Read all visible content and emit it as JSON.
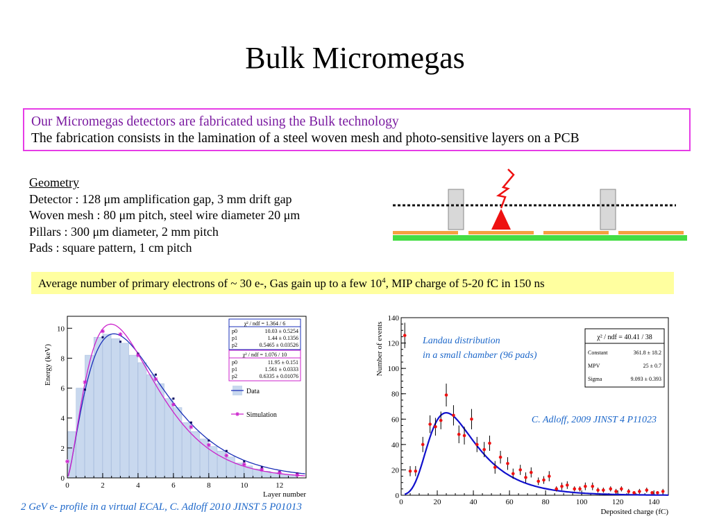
{
  "slide": {
    "title": "Bulk Micromegas",
    "intro_line1": "Our Micromegas detectors are fabricated using the Bulk technology",
    "intro_line2": "The fabrication consists in the lamination of a steel woven mesh and photo-sensitive layers on a PCB",
    "geometry": {
      "header": "Geometry",
      "lines": [
        "Detector : 128 μm amplification gap, 3 mm drift gap",
        "Woven mesh : 80 μm pitch, steel wire diameter 20 μm",
        "Pillars : 300 μm diameter, 2 mm pitch",
        "Pads : square pattern, 1 cm pitch"
      ]
    },
    "highlight_text_a": "Average number of primary electrons of ~ 30 e-, Gas gain up to a few 10",
    "highlight_sup": "4",
    "highlight_text_b": ", MIP charge of 5-20 fC in 150 ns",
    "left_caption": "2 GeV e- profile in a virtual ECAL, C. Adloff  2010 JINST 5 P01013"
  },
  "colors": {
    "box_border": "#e63ce6",
    "intro_line1": "#7a1aa0",
    "highlight_bg": "#ffff9f",
    "caption_blue": "#1b66c9",
    "diagram_pads": "#f5a040",
    "diagram_pcb": "#44dd44",
    "diagram_pillar": "#d8d8d8",
    "diagram_spark": "#ee1111",
    "data_line": "#1a2fb8",
    "sim_line": "#cc22cc",
    "hist_fill": "#c8d8ee",
    "landau_fit": "#1010cc",
    "landau_points": "#ee1111"
  },
  "chart_data": [
    {
      "type": "bar",
      "xlabel": "Layer number",
      "ylabel": "Energy (keV)",
      "xlim": [
        0,
        13.5
      ],
      "ylim": [
        0,
        10.8
      ],
      "x_ticks": [
        0,
        2,
        4,
        6,
        8,
        10,
        12
      ],
      "y_ticks": [
        0,
        2,
        4,
        6,
        8,
        10
      ],
      "categories": [
        0.5,
        1,
        1.5,
        2,
        2.5,
        3,
        3.5,
        4,
        4.5,
        5,
        5.5,
        6,
        6.5,
        7,
        7.5,
        8,
        8.5,
        9,
        9.5,
        10,
        10.5,
        11,
        11.5,
        12,
        12.5,
        13
      ],
      "values": [
        3.1,
        6.0,
        8.2,
        9.4,
        9.6,
        9.3,
        9.0,
        8.2,
        7.7,
        6.9,
        6.3,
        5.3,
        4.7,
        3.7,
        3.1,
        2.6,
        2.1,
        1.8,
        1.4,
        1.0,
        0.8,
        0.6,
        0.45,
        0.35,
        0.25,
        0.2
      ],
      "series": [
        {
          "name": "Data",
          "x": [
            1,
            2,
            3,
            4,
            5,
            6,
            7,
            8,
            9,
            10,
            11,
            12,
            13
          ],
          "y": [
            5.9,
            9.4,
            9.1,
            8.3,
            6.9,
            5.3,
            3.7,
            2.5,
            1.8,
            1.1,
            0.7,
            0.4,
            0.3
          ]
        },
        {
          "name": "Simulation",
          "x": [
            0,
            1,
            2,
            3,
            4,
            5,
            6,
            7,
            8,
            9,
            10,
            11,
            12,
            13
          ],
          "y": [
            1.1,
            6.4,
            9.8,
            9.6,
            8.2,
            6.6,
            4.9,
            3.4,
            2.2,
            1.5,
            0.9,
            0.55,
            0.35,
            0.2
          ]
        }
      ],
      "fits": [
        {
          "series": "Data",
          "p0": 10.03,
          "p1": 1.44,
          "p2": 0.5465
        },
        {
          "series": "Simulation",
          "p0": 11.95,
          "p1": 1.561,
          "p2": 0.6335
        }
      ],
      "stat_box_data": {
        "chi2": "χ² / ndf = 1.364 / 6",
        "rows": [
          {
            "name": "p0",
            "value": "10.03 ± 0.5254"
          },
          {
            "name": "p1",
            "value": "1.44 ± 0.1356"
          },
          {
            "name": "p2",
            "value": "0.5465 ± 0.03526"
          }
        ]
      },
      "stat_box_sim": {
        "chi2": "χ² / ndf = 1.076 / 10",
        "rows": [
          {
            "name": "p0",
            "value": "11.95 ± 0.151"
          },
          {
            "name": "p1",
            "value": "1.561 ± 0.0333"
          },
          {
            "name": "p2",
            "value": "0.6335 ± 0.01076"
          }
        ]
      },
      "legend": [
        {
          "label": "Data"
        },
        {
          "label": "Simulation"
        }
      ],
      "legend_position": "right"
    },
    {
      "type": "scatter",
      "xlabel": "Deposited charge (fC)",
      "ylabel": "Number of events",
      "xlim": [
        0,
        148
      ],
      "ylim": [
        0,
        140
      ],
      "x_ticks": [
        0,
        20,
        40,
        60,
        80,
        100,
        120,
        140
      ],
      "y_ticks": [
        0,
        20,
        40,
        60,
        80,
        100,
        120,
        140
      ],
      "points": [
        {
          "x": 2,
          "y": 126,
          "err": 10
        },
        {
          "x": 5,
          "y": 19,
          "err": 4
        },
        {
          "x": 8,
          "y": 19,
          "err": 4
        },
        {
          "x": 12,
          "y": 40,
          "err": 6
        },
        {
          "x": 16,
          "y": 56,
          "err": 7
        },
        {
          "x": 19,
          "y": 54,
          "err": 7
        },
        {
          "x": 22,
          "y": 59,
          "err": 7
        },
        {
          "x": 25,
          "y": 79,
          "err": 9
        },
        {
          "x": 29,
          "y": 63,
          "err": 8
        },
        {
          "x": 32,
          "y": 48,
          "err": 7
        },
        {
          "x": 35,
          "y": 47,
          "err": 7
        },
        {
          "x": 39,
          "y": 60,
          "err": 8
        },
        {
          "x": 42,
          "y": 40,
          "err": 6
        },
        {
          "x": 46,
          "y": 36,
          "err": 6
        },
        {
          "x": 49,
          "y": 41,
          "err": 6
        },
        {
          "x": 52,
          "y": 22,
          "err": 5
        },
        {
          "x": 55,
          "y": 30,
          "err": 5
        },
        {
          "x": 59,
          "y": 25,
          "err": 5
        },
        {
          "x": 62,
          "y": 17,
          "err": 4
        },
        {
          "x": 66,
          "y": 20,
          "err": 4
        },
        {
          "x": 69,
          "y": 14,
          "err": 4
        },
        {
          "x": 72,
          "y": 18,
          "err": 4
        },
        {
          "x": 76,
          "y": 11,
          "err": 3
        },
        {
          "x": 79,
          "y": 12,
          "err": 3
        },
        {
          "x": 82,
          "y": 15,
          "err": 4
        },
        {
          "x": 86,
          "y": 5,
          "err": 2
        },
        {
          "x": 89,
          "y": 7,
          "err": 3
        },
        {
          "x": 92,
          "y": 8,
          "err": 3
        },
        {
          "x": 96,
          "y": 5,
          "err": 2
        },
        {
          "x": 99,
          "y": 5,
          "err": 2
        },
        {
          "x": 102,
          "y": 7,
          "err": 3
        },
        {
          "x": 106,
          "y": 7,
          "err": 3
        },
        {
          "x": 109,
          "y": 4,
          "err": 2
        },
        {
          "x": 112,
          "y": 4,
          "err": 2
        },
        {
          "x": 116,
          "y": 5,
          "err": 2
        },
        {
          "x": 119,
          "y": 3,
          "err": 2
        },
        {
          "x": 122,
          "y": 5,
          "err": 2
        },
        {
          "x": 126,
          "y": 3,
          "err": 2
        },
        {
          "x": 129,
          "y": 2,
          "err": 1
        },
        {
          "x": 132,
          "y": 3,
          "err": 2
        },
        {
          "x": 136,
          "y": 4,
          "err": 2
        },
        {
          "x": 139,
          "y": 2,
          "err": 1
        },
        {
          "x": 142,
          "y": 2,
          "err": 1
        },
        {
          "x": 145,
          "y": 3,
          "err": 2
        }
      ],
      "fit": {
        "constant": 361.8,
        "mpv": 25,
        "sigma": 9.093
      },
      "stat_box": {
        "chi2": "χ² / ndf = 40.41 / 38",
        "rows": [
          {
            "name": "Constant",
            "value": "361.8 ± 18.2"
          },
          {
            "name": "MPV",
            "value": "25 ± 0.7"
          },
          {
            "name": "Sigma",
            "value": "9.093 ± 0.393"
          }
        ]
      },
      "annotation1": "Landau distribution",
      "annotation2": "in a small chamber (96 pads)",
      "reference": "C. Adloff, 2009 JINST 4 P11023"
    }
  ]
}
